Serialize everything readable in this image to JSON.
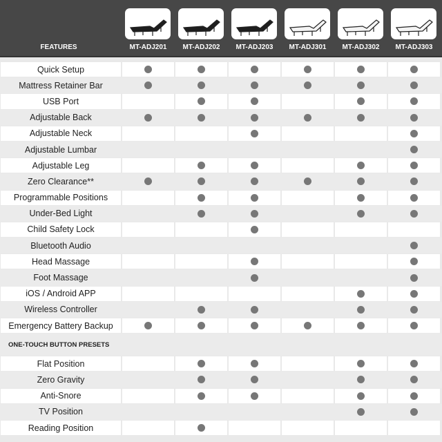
{
  "header": {
    "features_label": "FEATURES"
  },
  "models": [
    {
      "name": "MT-ADJ201",
      "bed_color": "black"
    },
    {
      "name": "MT-ADJ202",
      "bed_color": "black"
    },
    {
      "name": "MT-ADJ203",
      "bed_color": "black"
    },
    {
      "name": "MT-ADJ301",
      "bed_color": "white"
    },
    {
      "name": "MT-ADJ302",
      "bed_color": "white"
    },
    {
      "name": "MT-ADJ303",
      "bed_color": "white"
    }
  ],
  "features": [
    {
      "label": "Quick Setup",
      "has": [
        1,
        1,
        1,
        1,
        1,
        1
      ]
    },
    {
      "label": "Mattress Retainer Bar",
      "has": [
        1,
        1,
        1,
        1,
        1,
        1
      ]
    },
    {
      "label": "USB Port",
      "has": [
        0,
        1,
        1,
        0,
        1,
        1
      ]
    },
    {
      "label": "Adjustable Back",
      "has": [
        1,
        1,
        1,
        1,
        1,
        1
      ]
    },
    {
      "label": "Adjustable Neck",
      "has": [
        0,
        0,
        1,
        0,
        0,
        1
      ]
    },
    {
      "label": "Adjustable Lumbar",
      "has": [
        0,
        0,
        0,
        0,
        0,
        1
      ]
    },
    {
      "label": "Adjustable Leg",
      "has": [
        0,
        1,
        1,
        0,
        1,
        1
      ]
    },
    {
      "label": "Zero Clearance**",
      "has": [
        1,
        1,
        1,
        1,
        1,
        1
      ]
    },
    {
      "label": "Programmable Positions",
      "has": [
        0,
        1,
        1,
        0,
        1,
        1
      ]
    },
    {
      "label": "Under-Bed Light",
      "has": [
        0,
        1,
        1,
        0,
        1,
        1
      ]
    },
    {
      "label": "Child Safety Lock",
      "has": [
        0,
        0,
        1,
        0,
        0,
        0
      ]
    },
    {
      "label": "Bluetooth Audio",
      "has": [
        0,
        0,
        0,
        0,
        0,
        1
      ]
    },
    {
      "label": "Head Massage",
      "has": [
        0,
        0,
        1,
        0,
        0,
        1
      ]
    },
    {
      "label": "Foot Massage",
      "has": [
        0,
        0,
        1,
        0,
        0,
        1
      ]
    },
    {
      "label": "iOS / Android APP",
      "has": [
        0,
        0,
        0,
        0,
        1,
        1
      ]
    },
    {
      "label": "Wireless Controller",
      "has": [
        0,
        1,
        1,
        0,
        1,
        1
      ]
    },
    {
      "label": "Emergency Battery Backup",
      "has": [
        1,
        1,
        1,
        1,
        1,
        1
      ]
    }
  ],
  "presets_section": {
    "title": "ONE-TOUCH BUTTON PRESETS",
    "items": [
      {
        "label": "Flat Position",
        "has": [
          0,
          1,
          1,
          0,
          1,
          1
        ]
      },
      {
        "label": "Zero Gravity",
        "has": [
          0,
          1,
          1,
          0,
          1,
          1
        ]
      },
      {
        "label": "Anti-Snore",
        "has": [
          0,
          1,
          1,
          0,
          1,
          1
        ]
      },
      {
        "label": "TV Position",
        "has": [
          0,
          0,
          0,
          0,
          1,
          1
        ]
      },
      {
        "label": "Reading Position",
        "has": [
          0,
          1,
          0,
          0,
          0,
          0
        ]
      }
    ]
  },
  "colors": {
    "header_bg": "#474747",
    "dot": "#777777",
    "row_alt": "#ebebeb"
  }
}
